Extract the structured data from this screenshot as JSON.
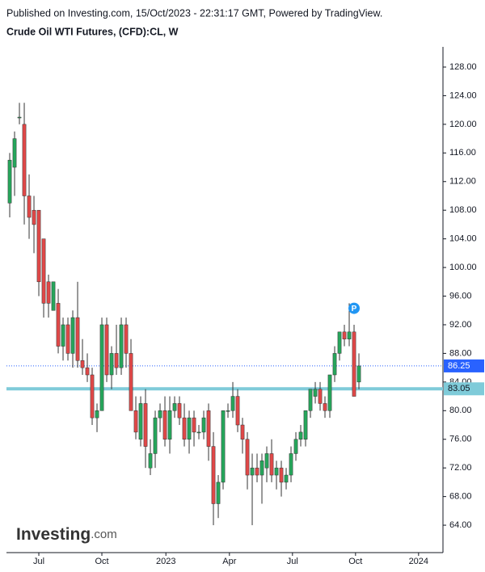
{
  "chart_data": {
    "type": "candlestick",
    "subtitle": "Published on Investing.com, 15/Oct/2023 - 22:31:17 GMT, Powered by TradingView.",
    "title": "Crude Oil WTI Futures, (CFD):CL, W",
    "open": [
      109,
      114,
      121,
      120,
      110,
      108,
      108,
      104,
      98,
      94,
      95,
      89,
      92,
      88,
      93,
      87,
      86,
      85,
      79,
      80,
      92,
      85,
      88,
      86,
      92,
      88,
      80,
      76,
      81,
      72,
      74,
      79,
      80,
      76,
      80,
      81,
      79,
      76,
      79,
      77,
      77,
      80,
      75,
      67,
      70,
      80,
      80,
      82,
      78,
      76,
      71,
      72,
      71,
      72,
      74,
      71,
      72,
      70,
      71,
      74,
      76,
      76,
      80,
      82,
      83,
      81,
      80,
      85,
      88,
      91,
      90,
      91,
      84
    ],
    "high": [
      116,
      119,
      123,
      123,
      113,
      110,
      108,
      104,
      99,
      98,
      97,
      93,
      93,
      94,
      98,
      90,
      88,
      86,
      81,
      93,
      93,
      89,
      92,
      93,
      93,
      90,
      82,
      82,
      83,
      76,
      80,
      81,
      82,
      82,
      82,
      82,
      81,
      80,
      80,
      78,
      80,
      81,
      77,
      71,
      80,
      81,
      84,
      83,
      79,
      77,
      74,
      74,
      74,
      75,
      76,
      73,
      73,
      72,
      75,
      77,
      78,
      80,
      83,
      84,
      84,
      82,
      85,
      89,
      91,
      92,
      95,
      92,
      88
    ],
    "low": [
      107,
      110,
      120,
      106,
      104,
      102,
      96,
      93,
      93,
      94,
      88,
      87,
      87,
      86,
      86,
      85,
      84,
      78,
      77,
      80,
      84,
      83,
      85,
      85,
      86,
      80,
      76,
      75,
      72,
      71,
      72,
      77,
      75,
      74,
      79,
      78,
      75,
      74,
      75,
      76,
      76,
      73,
      64,
      65,
      69,
      79,
      79,
      77,
      74,
      69,
      64,
      70,
      67,
      70,
      70,
      69,
      68,
      69,
      70,
      73,
      75,
      75,
      79,
      81,
      80,
      79,
      79,
      84,
      87,
      89,
      89,
      82,
      83
    ],
    "close": [
      115,
      118,
      121,
      110,
      107,
      106,
      98,
      95,
      95,
      98,
      89,
      92,
      88,
      93,
      87,
      86,
      85,
      79,
      80,
      92,
      85,
      88,
      86,
      92,
      88,
      80,
      77,
      81,
      75,
      74,
      79,
      80,
      76,
      80,
      81,
      79,
      76,
      79,
      77,
      77,
      79,
      75,
      67,
      70,
      80,
      80,
      82,
      78,
      76,
      71,
      72,
      71,
      73,
      74,
      71,
      72,
      70,
      71,
      74,
      76,
      77,
      80,
      83,
      83,
      81,
      80,
      85,
      88,
      91,
      90,
      91,
      82,
      86.25
    ],
    "up_color": "#26a65b",
    "down_color": "#e04848",
    "last_price": 86.25,
    "last_price_color": "#2962ff",
    "level": {
      "value": 83.05,
      "color": "#7fcbd9"
    },
    "marker": {
      "label": "P",
      "x": 71,
      "value": 94.3,
      "color": "#2196f3"
    },
    "ylim": [
      60.17,
      130.82
    ],
    "yticks": [
      {
        "value": 64,
        "label": "64.00"
      },
      {
        "value": 68,
        "label": "68.00"
      },
      {
        "value": 72,
        "label": "72.00"
      },
      {
        "value": 76,
        "label": "76.00"
      },
      {
        "value": 80,
        "label": "80.00"
      },
      {
        "value": 84,
        "label": "84.00"
      },
      {
        "value": 88,
        "label": "88.00"
      },
      {
        "value": 92,
        "label": "92.00"
      },
      {
        "value": 96,
        "label": "96.00"
      },
      {
        "value": 100,
        "label": "100.00"
      },
      {
        "value": 104,
        "label": "104.00"
      },
      {
        "value": 108,
        "label": "108.00"
      },
      {
        "value": 112,
        "label": "112.00"
      },
      {
        "value": 116,
        "label": "116.00"
      },
      {
        "value": 120,
        "label": "120.00"
      },
      {
        "value": 124,
        "label": "124.00"
      },
      {
        "value": 128,
        "label": "128.00"
      }
    ],
    "xlim": [
      -0.67,
      89.33
    ],
    "xticks": [
      {
        "value": 6,
        "label": "Jul"
      },
      {
        "value": 19,
        "label": "Oct"
      },
      {
        "value": 32.2,
        "label": "2023"
      },
      {
        "value": 45.3,
        "label": "Apr"
      },
      {
        "value": 58.3,
        "label": "Jul"
      },
      {
        "value": 71.3,
        "label": "Oct"
      },
      {
        "value": 84.3,
        "label": "2024"
      }
    ],
    "logo": [
      "Investing",
      ".com"
    ]
  }
}
